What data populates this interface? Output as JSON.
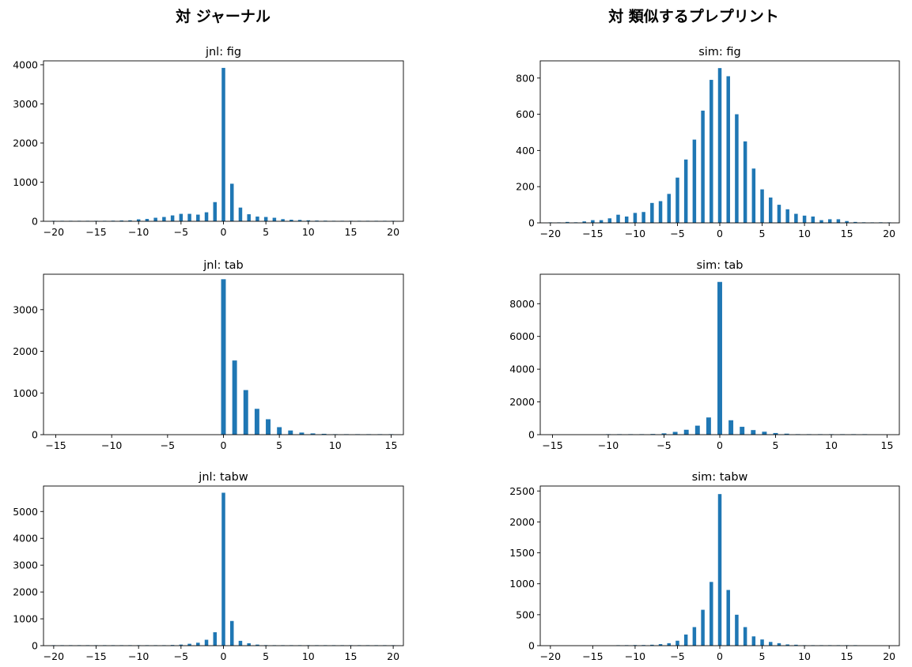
{
  "column_titles": [
    "対 ジャーナル",
    "対 類似するプレプリント"
  ],
  "chart_data": [
    {
      "type": "bar",
      "title": "jnl: fig",
      "xlabel": "",
      "ylabel": "",
      "xlim": [
        -21.2,
        21.2
      ],
      "ylim": [
        0,
        4100
      ],
      "xticks": [
        -20,
        -15,
        -10,
        -5,
        0,
        5,
        10,
        15,
        20
      ],
      "yticks": [
        0,
        1000,
        2000,
        3000,
        4000
      ],
      "color": "#1f77b4",
      "x": [
        -20,
        -19,
        -18,
        -17,
        -16,
        -15,
        -14,
        -13,
        -12,
        -11,
        -10,
        -9,
        -8,
        -7,
        -6,
        -5,
        -4,
        -3,
        -2,
        -1,
        0,
        1,
        2,
        3,
        4,
        5,
        6,
        7,
        8,
        9,
        10,
        11,
        12,
        13,
        14,
        15,
        16,
        17,
        18,
        19,
        20
      ],
      "values": [
        3,
        3,
        5,
        5,
        8,
        8,
        12,
        15,
        20,
        25,
        50,
        60,
        90,
        110,
        150,
        190,
        190,
        170,
        230,
        490,
        3920,
        960,
        350,
        180,
        120,
        110,
        90,
        55,
        40,
        35,
        25,
        18,
        15,
        12,
        10,
        8,
        6,
        5,
        4,
        3,
        2
      ]
    },
    {
      "type": "bar",
      "title": "sim: fig",
      "xlabel": "",
      "ylabel": "",
      "xlim": [
        -21.2,
        21.2
      ],
      "ylim": [
        0,
        895
      ],
      "xticks": [
        -20,
        -15,
        -10,
        -5,
        0,
        5,
        10,
        15,
        20
      ],
      "yticks": [
        0,
        200,
        400,
        600,
        800
      ],
      "color": "#1f77b4",
      "x": [
        -20,
        -19,
        -18,
        -17,
        -16,
        -15,
        -14,
        -13,
        -12,
        -11,
        -10,
        -9,
        -8,
        -7,
        -6,
        -5,
        -4,
        -3,
        -2,
        -1,
        0,
        1,
        2,
        3,
        4,
        5,
        6,
        7,
        8,
        9,
        10,
        11,
        12,
        13,
        14,
        15,
        16,
        17,
        18,
        19,
        20
      ],
      "values": [
        2,
        2,
        5,
        3,
        8,
        15,
        15,
        25,
        45,
        35,
        55,
        60,
        110,
        120,
        160,
        250,
        350,
        460,
        620,
        790,
        855,
        810,
        600,
        450,
        300,
        185,
        140,
        100,
        75,
        50,
        40,
        35,
        15,
        20,
        20,
        10,
        5,
        3,
        2,
        3,
        2
      ]
    },
    {
      "type": "bar",
      "title": "jnl: tab",
      "xlabel": "",
      "ylabel": "",
      "xlim": [
        -16.1,
        16.1
      ],
      "ylim": [
        0,
        3850
      ],
      "xticks": [
        -15,
        -10,
        -5,
        0,
        5,
        10,
        15
      ],
      "yticks": [
        0,
        1000,
        2000,
        3000
      ],
      "color": "#1f77b4",
      "x": [
        -15,
        -14,
        -13,
        -12,
        -11,
        -10,
        -9,
        -8,
        -7,
        -6,
        -5,
        -4,
        -3,
        -2,
        -1,
        0,
        1,
        2,
        3,
        4,
        5,
        6,
        7,
        8,
        9,
        10,
        11,
        12,
        13,
        14,
        15
      ],
      "values": [
        0,
        0,
        0,
        0,
        0,
        0,
        0,
        0,
        0,
        0,
        0,
        0,
        0,
        0,
        0,
        3730,
        1780,
        1070,
        620,
        370,
        180,
        100,
        50,
        30,
        20,
        10,
        5,
        3,
        2,
        1,
        1
      ]
    },
    {
      "type": "bar",
      "title": "sim: tab",
      "xlabel": "",
      "ylabel": "",
      "xlim": [
        -16.1,
        16.1
      ],
      "ylim": [
        0,
        9800
      ],
      "xticks": [
        -15,
        -10,
        -5,
        0,
        5,
        10,
        15
      ],
      "yticks": [
        0,
        2000,
        4000,
        6000,
        8000
      ],
      "color": "#1f77b4",
      "x": [
        -15,
        -14,
        -13,
        -12,
        -11,
        -10,
        -9,
        -8,
        -7,
        -6,
        -5,
        -4,
        -3,
        -2,
        -1,
        0,
        1,
        2,
        3,
        4,
        5,
        6,
        7,
        8,
        9,
        10,
        11,
        12,
        13,
        14,
        15
      ],
      "values": [
        0,
        0,
        0,
        0,
        0,
        5,
        5,
        10,
        20,
        40,
        80,
        170,
        300,
        550,
        1050,
        9330,
        880,
        480,
        280,
        180,
        100,
        60,
        30,
        15,
        10,
        5,
        3,
        2,
        1,
        0,
        0
      ]
    },
    {
      "type": "bar",
      "title": "jnl: tabw",
      "xlabel": "",
      "ylabel": "",
      "xlim": [
        -21.2,
        21.2
      ],
      "ylim": [
        0,
        5950
      ],
      "xticks": [
        -20,
        -15,
        -10,
        -5,
        0,
        5,
        10,
        15,
        20
      ],
      "yticks": [
        0,
        1000,
        2000,
        3000,
        4000,
        5000
      ],
      "color": "#1f77b4",
      "x": [
        -20,
        -19,
        -18,
        -17,
        -16,
        -15,
        -14,
        -13,
        -12,
        -11,
        -10,
        -9,
        -8,
        -7,
        -6,
        -5,
        -4,
        -3,
        -2,
        -1,
        0,
        1,
        2,
        3,
        4,
        5,
        6,
        7,
        8,
        9,
        10,
        11,
        12,
        13,
        14,
        15,
        16,
        17,
        18,
        19,
        20
      ],
      "values": [
        2,
        2,
        2,
        2,
        3,
        3,
        3,
        4,
        5,
        5,
        6,
        8,
        10,
        15,
        25,
        40,
        70,
        110,
        220,
        500,
        5700,
        920,
        180,
        90,
        40,
        20,
        10,
        8,
        5,
        4,
        3,
        3,
        2,
        2,
        2,
        2,
        1,
        1,
        1,
        1,
        1
      ]
    },
    {
      "type": "bar",
      "title": "sim: tabw",
      "xlabel": "",
      "ylabel": "",
      "xlim": [
        -21.2,
        21.2
      ],
      "ylim": [
        0,
        2580
      ],
      "xticks": [
        -20,
        -15,
        -10,
        -5,
        0,
        5,
        10,
        15,
        20
      ],
      "yticks": [
        0,
        500,
        1000,
        1500,
        2000,
        2500
      ],
      "color": "#1f77b4",
      "x": [
        -20,
        -19,
        -18,
        -17,
        -16,
        -15,
        -14,
        -13,
        -12,
        -11,
        -10,
        -9,
        -8,
        -7,
        -6,
        -5,
        -4,
        -3,
        -2,
        -1,
        0,
        1,
        2,
        3,
        4,
        5,
        6,
        7,
        8,
        9,
        10,
        11,
        12,
        13,
        14,
        15,
        16,
        17,
        18,
        19,
        20
      ],
      "values": [
        0,
        0,
        0,
        0,
        0,
        0,
        0,
        0,
        5,
        8,
        10,
        10,
        15,
        25,
        40,
        80,
        180,
        300,
        580,
        1030,
        2450,
        900,
        500,
        300,
        150,
        100,
        60,
        40,
        20,
        15,
        5,
        5,
        3,
        2,
        2,
        1,
        1,
        0,
        0,
        0,
        0
      ]
    }
  ]
}
